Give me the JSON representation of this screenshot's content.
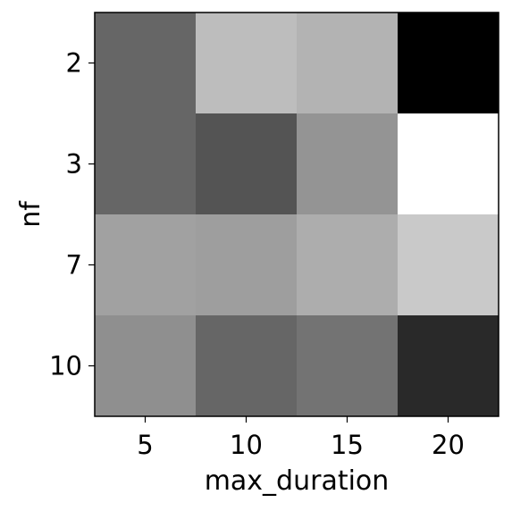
{
  "chart_data": {
    "type": "heatmap",
    "title": "",
    "xlabel": "max_duration",
    "ylabel": "nf",
    "x_categories": [
      "5",
      "10",
      "15",
      "20"
    ],
    "y_categories": [
      "2",
      "3",
      "7",
      "10"
    ],
    "colormap": "grayscale",
    "colorbar": false,
    "grid": false,
    "gray_levels": [
      [
        0.4,
        0.74,
        0.7,
        0.0
      ],
      [
        0.4,
        0.33,
        0.58,
        1.0
      ],
      [
        0.63,
        0.62,
        0.68,
        0.79
      ],
      [
        0.56,
        0.4,
        0.45,
        0.16
      ]
    ]
  }
}
